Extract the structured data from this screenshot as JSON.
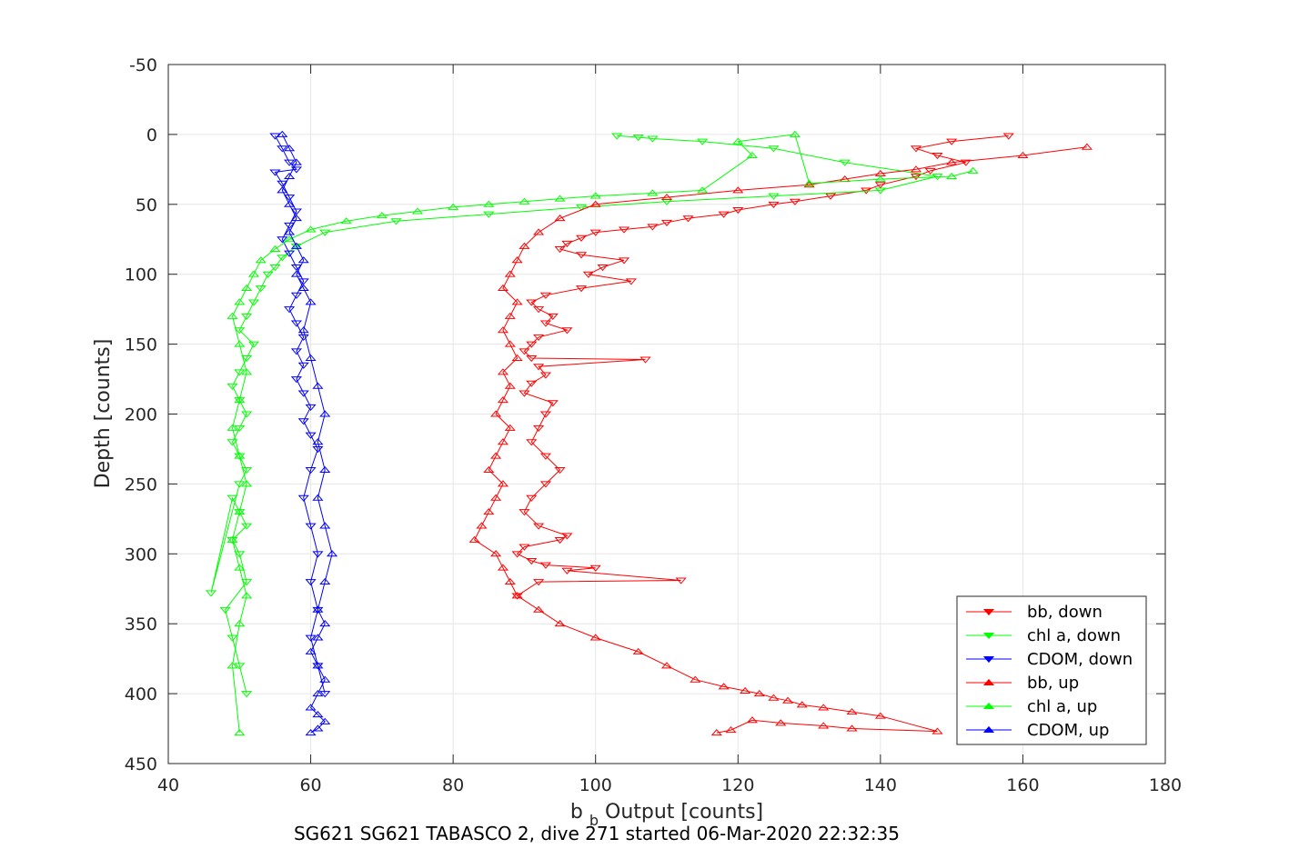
{
  "chart_data": {
    "type": "scatter",
    "xlabel_main": "b",
    "xlabel_sub": "b",
    "xlabel_rest": " Output [counts]",
    "ylabel": "Depth [counts]",
    "caption": "SG621 SG621 TABASCO 2, dive 271 started 06-Mar-2020 22:32:35",
    "xlim": [
      40,
      180
    ],
    "ylim": [
      -50,
      450
    ],
    "y_reversed": true,
    "grid": true,
    "xticks": [
      40,
      60,
      80,
      100,
      120,
      140,
      160,
      180
    ],
    "yticks": [
      -50,
      0,
      50,
      100,
      150,
      200,
      250,
      300,
      350,
      400,
      450
    ],
    "legend_position": "bottom-right",
    "colors": {
      "red": "#ff0000",
      "green": "#00ff00",
      "blue": "#0000ff",
      "grid": "#e6e6e6",
      "axis": "#262626"
    },
    "series": [
      {
        "name": "bb, down",
        "color": "#ff0000",
        "marker": "triangle-down",
        "connected": true,
        "x": [
          158,
          150,
          145,
          148,
          152,
          147,
          145,
          140,
          138,
          133,
          128,
          125,
          120,
          118,
          113,
          110,
          108,
          104,
          100,
          98,
          96,
          95,
          98,
          104,
          101,
          99,
          105,
          98,
          93,
          91,
          92,
          94,
          93,
          96,
          92,
          91,
          90,
          91,
          107,
          92,
          93,
          91,
          90,
          94,
          93,
          92,
          91,
          93,
          95,
          93,
          91,
          90,
          92,
          96,
          95,
          90,
          89,
          91,
          93,
          100,
          96,
          112,
          92,
          89
        ],
        "y": [
          1,
          5,
          10,
          15,
          20,
          26,
          30,
          36,
          40,
          44,
          48,
          50,
          54,
          57,
          60,
          63,
          66,
          68,
          70,
          74,
          78,
          82,
          86,
          90,
          95,
          100,
          105,
          110,
          115,
          120,
          125,
          130,
          135,
          140,
          145,
          150,
          155,
          160,
          161,
          166,
          172,
          178,
          185,
          192,
          200,
          210,
          220,
          230,
          240,
          250,
          260,
          270,
          280,
          287,
          290,
          295,
          300,
          305,
          308,
          310,
          312,
          319,
          320,
          330
        ]
      },
      {
        "name": "chl a, down",
        "color": "#00ff00",
        "marker": "triangle-down",
        "connected": true,
        "x": [
          103,
          106,
          108,
          115,
          125,
          135,
          148,
          140,
          125,
          110,
          98,
          85,
          72,
          62,
          58,
          56,
          55,
          54,
          53,
          52,
          51,
          50,
          52,
          51,
          50,
          49,
          50,
          51,
          50,
          49,
          50,
          51,
          50,
          46,
          49,
          50,
          51,
          49,
          50,
          51,
          48,
          49,
          50,
          51
        ],
        "y": [
          1,
          2,
          3,
          5,
          10,
          20,
          30,
          40,
          44,
          48,
          52,
          57,
          62,
          70,
          80,
          88,
          95,
          100,
          110,
          120,
          130,
          140,
          150,
          160,
          170,
          180,
          190,
          200,
          210,
          220,
          230,
          240,
          250,
          328,
          260,
          270,
          280,
          290,
          300,
          320,
          340,
          360,
          380,
          400
        ]
      },
      {
        "name": "CDOM, down",
        "color": "#0000ff",
        "marker": "triangle-down",
        "connected": true,
        "x": [
          55,
          56,
          57,
          58,
          55,
          56,
          57,
          58,
          57,
          56,
          57,
          58,
          59,
          58,
          57,
          58,
          59,
          58,
          59,
          58,
          59,
          60,
          59,
          60,
          61,
          60,
          59,
          60,
          61,
          60,
          61,
          60,
          61,
          62
        ],
        "y": [
          1,
          10,
          20,
          25,
          27,
          35,
          45,
          55,
          65,
          75,
          85,
          95,
          105,
          115,
          125,
          135,
          145,
          155,
          165,
          175,
          185,
          195,
          205,
          215,
          225,
          240,
          260,
          280,
          300,
          320,
          340,
          360,
          380,
          400
        ]
      },
      {
        "name": "bb, up",
        "color": "#ff0000",
        "marker": "triangle-up",
        "connected": true,
        "x": [
          169,
          160,
          150,
          145,
          140,
          135,
          130,
          120,
          110,
          100,
          95,
          92,
          90,
          89,
          88,
          87,
          89,
          88,
          87,
          88,
          89,
          87,
          88,
          87,
          86,
          88,
          87,
          86,
          85,
          87,
          86,
          85,
          84,
          83,
          86,
          87,
          88,
          89,
          92,
          95,
          100,
          106,
          110,
          114,
          118,
          121,
          123,
          125,
          127,
          129,
          132,
          136,
          140,
          148,
          136,
          132,
          126,
          122,
          119,
          117
        ],
        "y": [
          9,
          15,
          20,
          25,
          28,
          32,
          36,
          40,
          45,
          50,
          60,
          70,
          80,
          90,
          100,
          110,
          120,
          130,
          140,
          150,
          160,
          170,
          180,
          190,
          200,
          210,
          220,
          230,
          240,
          250,
          260,
          270,
          280,
          290,
          300,
          310,
          320,
          330,
          340,
          350,
          360,
          370,
          380,
          390,
          395,
          398,
          400,
          403,
          405,
          408,
          410,
          413,
          416,
          427,
          425,
          423,
          421,
          419,
          426,
          428
        ]
      },
      {
        "name": "chl a, up",
        "color": "#00ff00",
        "marker": "triangle-up",
        "connected": true,
        "x": [
          153,
          150,
          140,
          130,
          128,
          120,
          122,
          115,
          108,
          100,
          95,
          90,
          85,
          80,
          75,
          70,
          65,
          60,
          57,
          55,
          53,
          52,
          51,
          50,
          49,
          50,
          51,
          50,
          49,
          50,
          51,
          50,
          49,
          50,
          51,
          50,
          49,
          50
        ],
        "y": [
          26,
          30,
          32,
          35,
          0,
          5,
          15,
          40,
          42,
          44,
          46,
          48,
          50,
          52,
          55,
          58,
          62,
          68,
          75,
          82,
          90,
          100,
          110,
          120,
          130,
          150,
          170,
          190,
          210,
          230,
          250,
          270,
          290,
          310,
          330,
          350,
          380,
          428
        ]
      },
      {
        "name": "CDOM, up",
        "color": "#0000ff",
        "marker": "triangle-up",
        "connected": true,
        "x": [
          56,
          57,
          58,
          57,
          56,
          57,
          58,
          57,
          58,
          59,
          58,
          59,
          60,
          59,
          60,
          61,
          62,
          61,
          62,
          61,
          62,
          63,
          62,
          61,
          62,
          61,
          60,
          61,
          62,
          61,
          60,
          61,
          62,
          61,
          60
        ],
        "y": [
          0,
          10,
          20,
          30,
          40,
          50,
          60,
          70,
          80,
          90,
          100,
          110,
          120,
          140,
          160,
          180,
          200,
          220,
          240,
          260,
          280,
          300,
          320,
          340,
          350,
          360,
          370,
          380,
          390,
          400,
          410,
          415,
          420,
          425,
          428
        ]
      }
    ]
  }
}
